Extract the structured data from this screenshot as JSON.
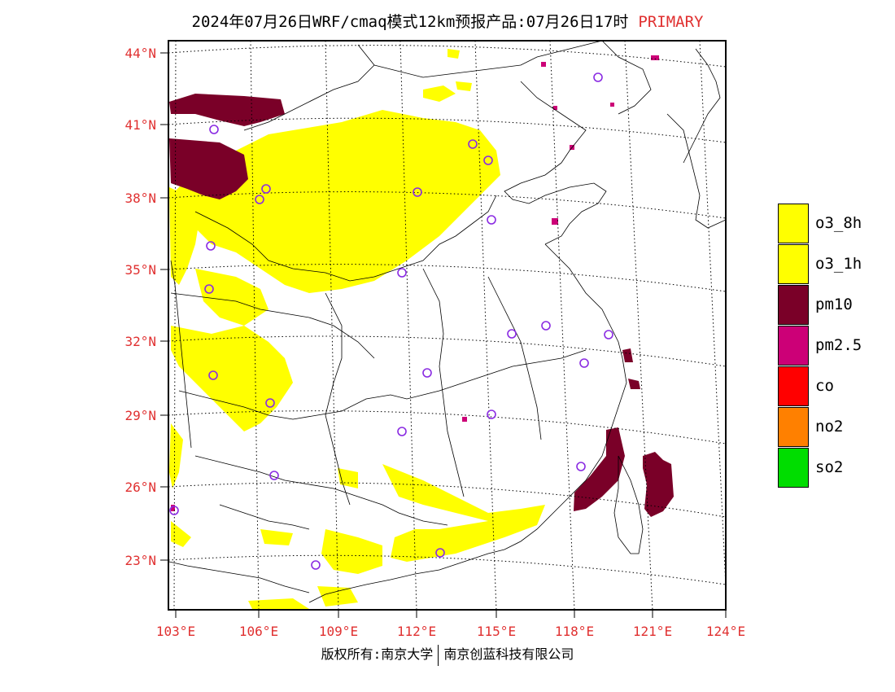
{
  "title": {
    "main": "2024年07月26日WRF/cmaq模式12km预报产品:07月26日17时",
    "tag": "PRIMARY"
  },
  "colors": {
    "label_red": "#e03030",
    "o3": "#ffff00",
    "pm10": "#7a0028",
    "pm25": "#cc0077",
    "co": "#ff0000",
    "no2": "#ff8000",
    "so2": "#00dd00",
    "marker": "#8a2be2"
  },
  "map": {
    "lat_labels": [
      "44°N",
      "41°N",
      "38°N",
      "35°N",
      "32°N",
      "29°N",
      "26°N",
      "23°N"
    ],
    "lon_labels": [
      "103°E",
      "106°E",
      "109°E",
      "112°E",
      "115°E",
      "118°E",
      "121°E",
      "124°E"
    ]
  },
  "legend": [
    {
      "label": "o3_8h",
      "color": "#ffff00"
    },
    {
      "label": "o3_1h",
      "color": "#ffff00"
    },
    {
      "label": "pm10",
      "color": "#7a0028"
    },
    {
      "label": "pm2.5",
      "color": "#cc0077"
    },
    {
      "label": "co",
      "color": "#ff0000"
    },
    {
      "label": "no2",
      "color": "#ff8000"
    },
    {
      "label": "so2",
      "color": "#00dd00"
    }
  ],
  "footer": {
    "left": "版权所有:南京大学",
    "right": "南京创蓝科技有限公司"
  }
}
